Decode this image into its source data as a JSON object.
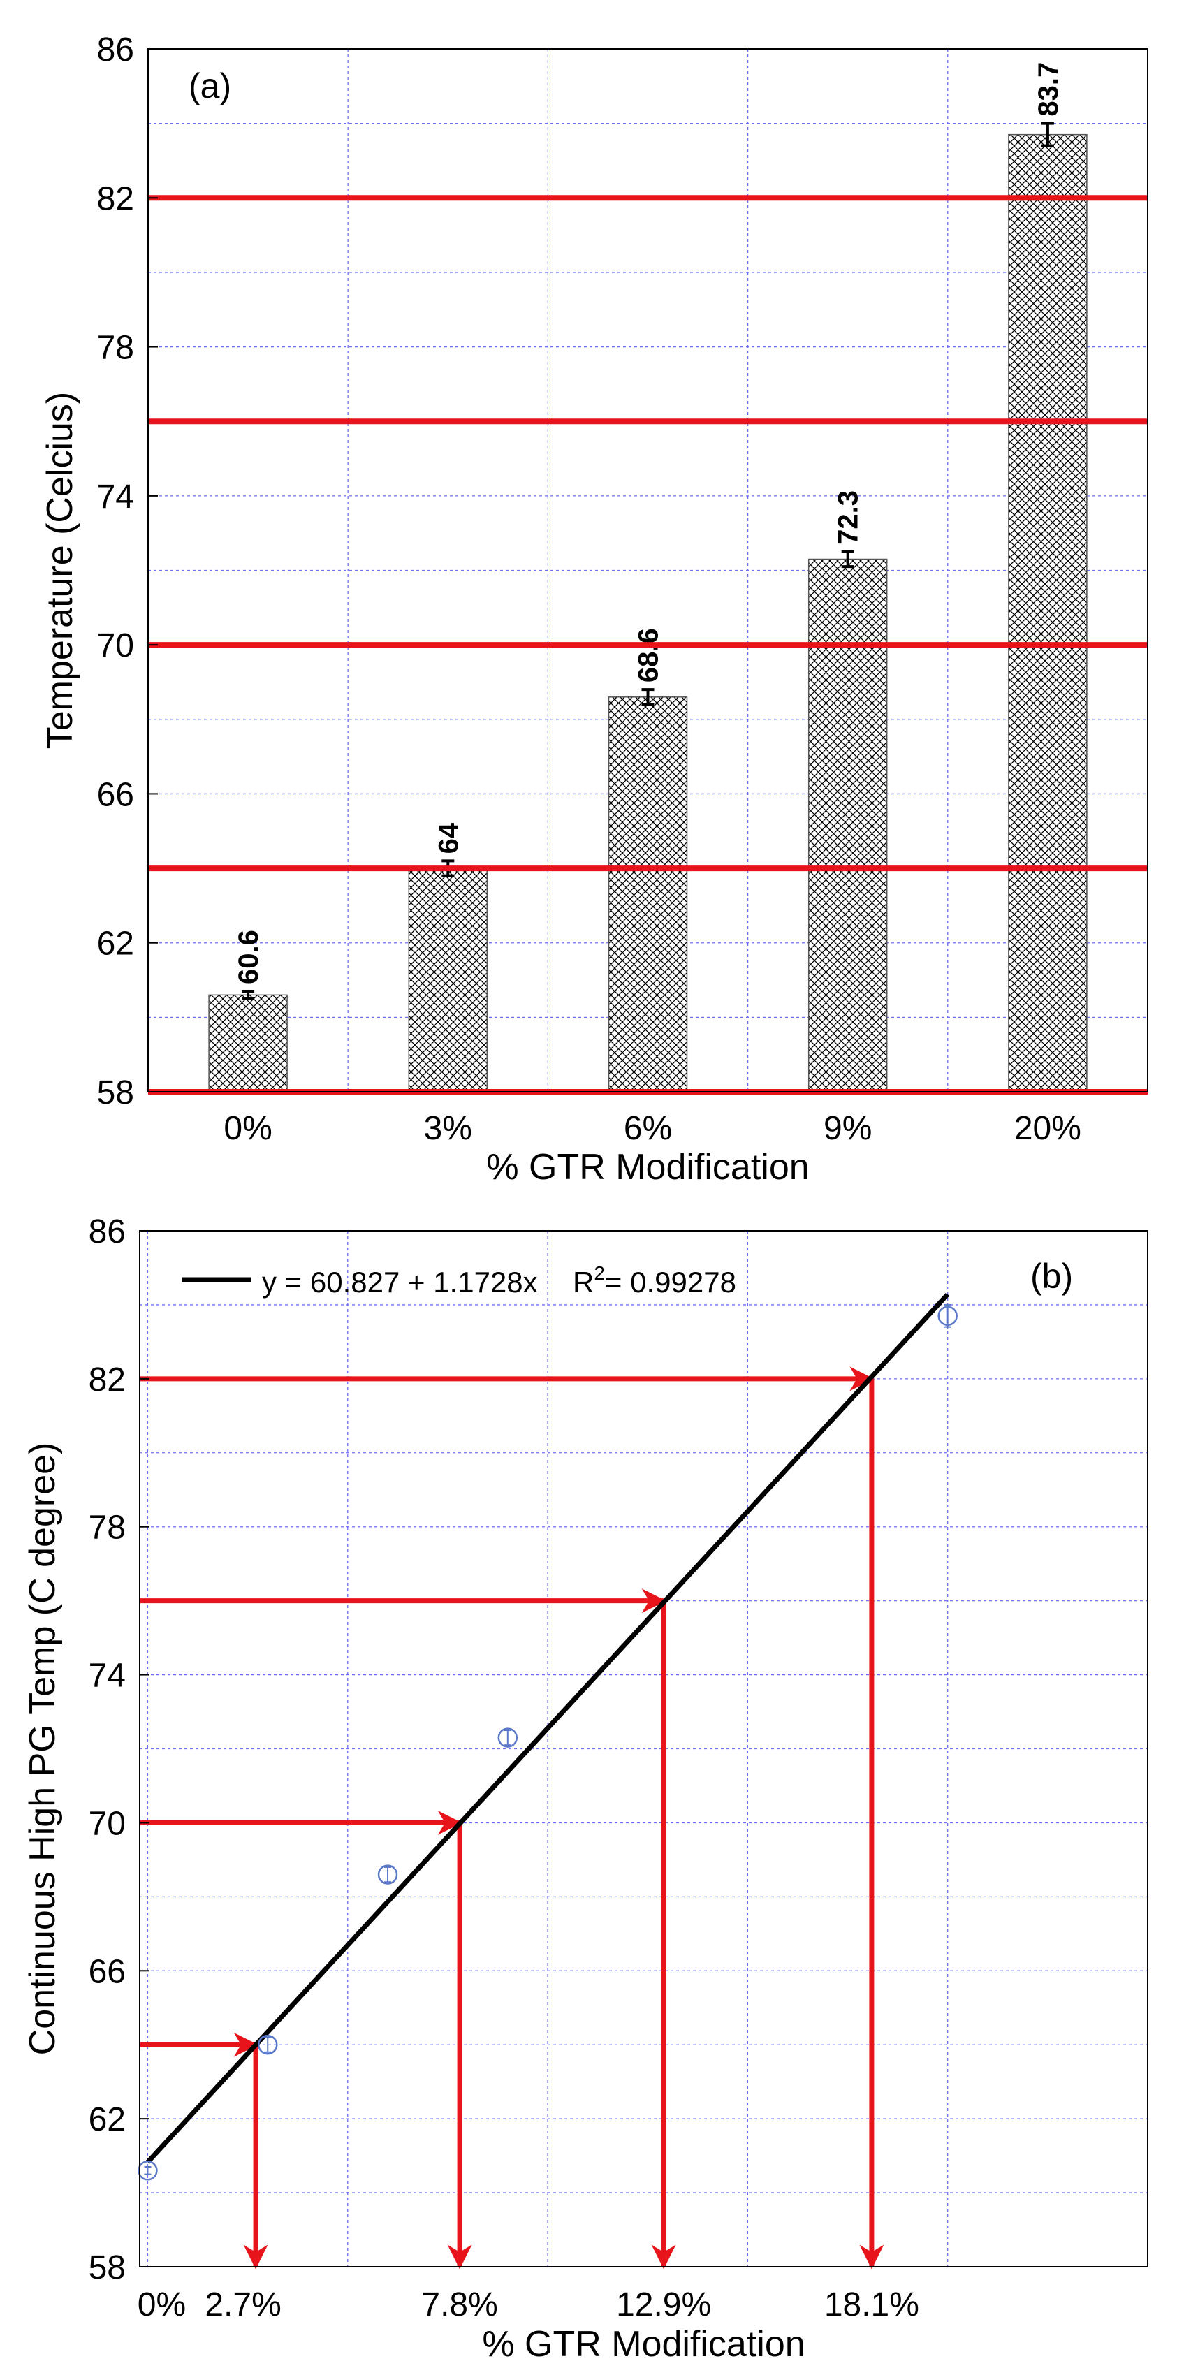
{
  "chart_data": [
    {
      "type": "bar",
      "panel_label": "(a)",
      "categories": [
        "0%",
        "3%",
        "6%",
        "9%",
        "20%"
      ],
      "values": [
        60.6,
        64,
        68.6,
        72.3,
        83.7
      ],
      "value_labels": [
        "60.6",
        "64",
        "68.6",
        "72.3",
        "83.7"
      ],
      "error": [
        0.1,
        0.2,
        0.2,
        0.2,
        0.3
      ],
      "xlabel": "% GTR Modification",
      "ylabel": "Temperature (Celcius)",
      "ylim": [
        58,
        86
      ],
      "yticks": [
        58,
        62,
        66,
        70,
        74,
        78,
        82,
        86
      ],
      "ytick_labels": [
        "58",
        "62",
        "66",
        "70",
        "74",
        "78",
        "82",
        "86"
      ],
      "yminor_step": 2,
      "grid": true,
      "bar_fill": "crosshatch",
      "reference_lines": [
        58,
        64,
        70,
        76,
        82
      ],
      "reference_color": "#e8141b"
    },
    {
      "type": "scatter",
      "panel_label": "(b)",
      "x": [
        0,
        3,
        6,
        9,
        20
      ],
      "y": [
        60.6,
        64,
        68.6,
        72.3,
        83.7
      ],
      "error": [
        0.1,
        0.2,
        0.2,
        0.2,
        0.3
      ],
      "point_color": "#5a78c8",
      "fit": {
        "intercept": 60.827,
        "slope": 1.1728,
        "x_range": [
          0,
          20
        ],
        "legend_text": "y = 60.827 + 1.1728x",
        "r2_prefix": "R",
        "r2_sup": "2",
        "r2_text": "= 0.99278",
        "color": "#000000"
      },
      "xlabel": "% GTR Modification",
      "ylabel": "Continuous High PG Temp (C degree)",
      "xlim": [
        -0.2,
        25
      ],
      "ylim": [
        58,
        86
      ],
      "yticks": [
        58,
        62,
        66,
        70,
        74,
        78,
        82,
        86
      ],
      "ytick_labels": [
        "58",
        "62",
        "66",
        "70",
        "74",
        "78",
        "82",
        "86"
      ],
      "x_gridlines": [
        0,
        5,
        10,
        15,
        20,
        25
      ],
      "yminor_step": 2,
      "grid": true,
      "xtick_positions": [
        0,
        2.7,
        7.8,
        12.9,
        18.1
      ],
      "xtick_labels": [
        "0%",
        "2.7%",
        "7.8%",
        "12.9%",
        "18.1%"
      ],
      "arrows": [
        {
          "y": 64,
          "x": 2.7
        },
        {
          "y": 70,
          "x": 7.8
        },
        {
          "y": 76,
          "x": 12.9
        },
        {
          "y": 82,
          "x": 18.1
        }
      ],
      "arrow_color": "#e8141b"
    }
  ]
}
